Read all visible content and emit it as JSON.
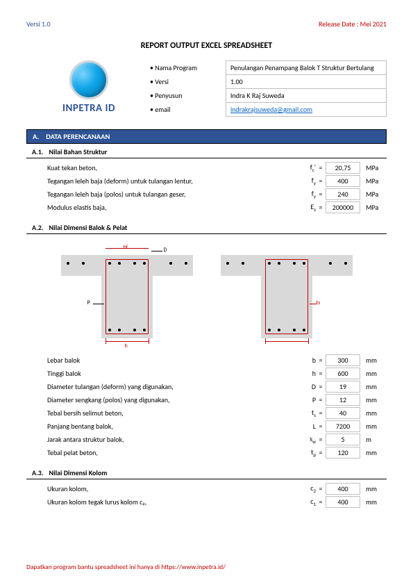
{
  "header": {
    "version": "Versi 1.0",
    "release": "Release Date : Mei 2021"
  },
  "title": "REPORT OUTPUT EXCEL SPREADSHEET",
  "logo": {
    "text": "INPETRA ID"
  },
  "info": {
    "rows": [
      {
        "label": "• Nama Program",
        "value": "Penulangan Penampang Balok T Struktur Bertulang",
        "link": false
      },
      {
        "label": "• Versi",
        "value": "1.00",
        "link": false
      },
      {
        "label": "• Penyusun",
        "value": "Indra K Raj Suweda",
        "link": false
      },
      {
        "label": "• email",
        "value": "indrakrajsuweda@gmail.com",
        "link": true
      }
    ]
  },
  "sectionA": {
    "num": "A.",
    "title": "DATA PERENCANAAN"
  },
  "a1": {
    "num": "A.1.",
    "title": "Nilai Bahan Struktur",
    "rows": [
      {
        "label": "Kuat tekan beton,",
        "sym": "f",
        "sub": "c",
        "sup": "'",
        "val": "20,75",
        "unit": "MPa"
      },
      {
        "label": "Tegangan leleh baja (deform) untuk tulangan lentur,",
        "sym": "f",
        "sub": "y",
        "sup": "",
        "val": "400",
        "unit": "MPa"
      },
      {
        "label": "Tegangan leleh baja (polos) untuk tulangan geser,",
        "sym": "f",
        "sub": "y",
        "sup": "",
        "val": "240",
        "unit": "MPa"
      },
      {
        "label": "Modulus elastis baja,",
        "sym": "E",
        "sub": "s",
        "sup": "",
        "val": "200000",
        "unit": "MPa"
      }
    ]
  },
  "a2": {
    "num": "A.2.",
    "title": "Nilai Dimensi Balok & Pelat",
    "diagram_labels": {
      "bf": "bf",
      "D": "D",
      "P": "P",
      "h": "h",
      "ts": "ts"
    },
    "rows": [
      {
        "label": "Lebar balok",
        "sym": "b",
        "sub": "",
        "val": "300",
        "unit": "mm"
      },
      {
        "label": "Tinggi balok",
        "sym": "h",
        "sub": "",
        "val": "600",
        "unit": "mm"
      },
      {
        "label": "Diameter tulangan (deform) yang digunakan,",
        "sym": "D",
        "sub": "",
        "val": "19",
        "unit": "mm"
      },
      {
        "label": "Diameter sengkang (polos) yang digunakan,",
        "sym": "P",
        "sub": "",
        "val": "12",
        "unit": "mm"
      },
      {
        "label": "Tebal bersih selimut beton,",
        "sym": "t",
        "sub": "s",
        "val": "40",
        "unit": "mm"
      },
      {
        "label": "Panjang bentang balok,",
        "sym": "L",
        "sub": "",
        "val": "7200",
        "unit": "mm"
      },
      {
        "label": "Jarak antara struktur balok,",
        "sym": "s",
        "sub": "w",
        "val": "5",
        "unit": "m"
      },
      {
        "label": "Tebal pelat beton,",
        "sym": "t",
        "sub": "p",
        "val": "120",
        "unit": "mm"
      }
    ]
  },
  "a3": {
    "num": "A.3.",
    "title": "Nilai Dimensi Kolom",
    "rows": [
      {
        "label": "Ukuran kolom,",
        "sym": "c",
        "sub": "2",
        "val": "400",
        "unit": "mm"
      },
      {
        "label": "Ukuran kolom tegak lurus kolom c₂,",
        "sym": "c",
        "sub": "1",
        "val": "400",
        "unit": "mm"
      }
    ]
  },
  "footer": "Dapatkan program bantu spreadsheet ini hanya di https://www.inpetra.id/"
}
